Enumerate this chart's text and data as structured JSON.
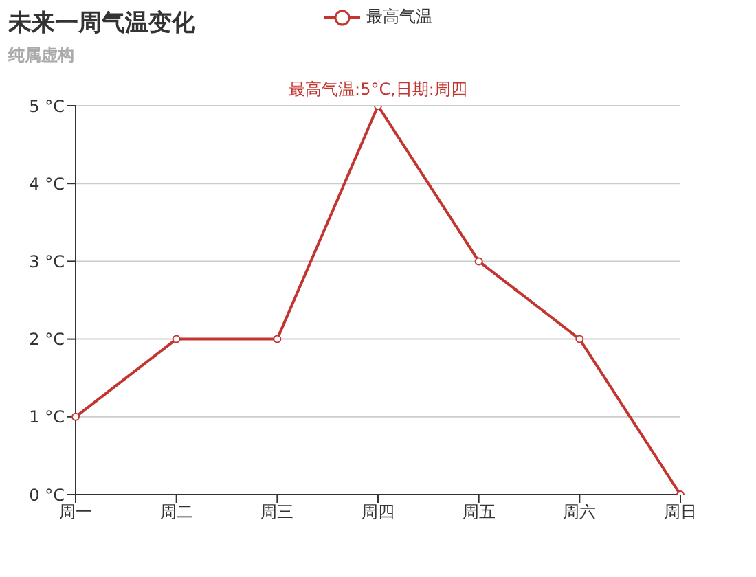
{
  "chart_data": {
    "type": "line",
    "title": "未来一周气温变化",
    "subtitle": "纯属虚构",
    "categories": [
      "周一",
      "周二",
      "周三",
      "周四",
      "周五",
      "周六",
      "周日"
    ],
    "series": [
      {
        "name": "最高气温",
        "color": "#c23531",
        "values": [
          1,
          2,
          2,
          5,
          3,
          2,
          0
        ]
      }
    ],
    "ylim": [
      0,
      5
    ],
    "yticks": [
      {
        "value": 0,
        "label": "0 °C"
      },
      {
        "value": 1,
        "label": "1 °C"
      },
      {
        "value": 2,
        "label": "2 °C"
      },
      {
        "value": 3,
        "label": "3 °C"
      },
      {
        "value": 4,
        "label": "4 °C"
      },
      {
        "value": 5,
        "label": "5 °C"
      }
    ],
    "annotations": [
      {
        "text": "最高气温:5°C,日期:周四",
        "x": "周四",
        "y": 5
      }
    ],
    "grid": "y",
    "legend": "top",
    "marker": "circle",
    "line_style": "solid"
  }
}
